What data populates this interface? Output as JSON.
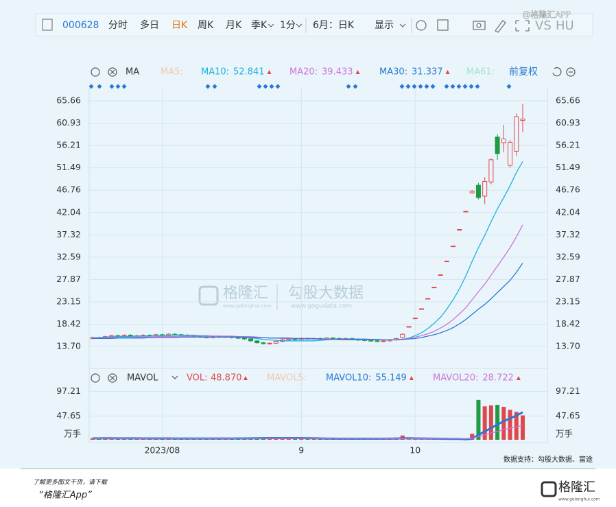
{
  "watermark": "@格隆汇APP",
  "toolbar": {
    "code": "000628",
    "tabs": [
      "分时",
      "多日",
      "日K",
      "周K",
      "月K",
      "季K",
      "1分",
      "6月：日K",
      "显示"
    ],
    "compare": "VS",
    "extra": "HU"
  },
  "chart_data": [
    {
      "type": "candlestick",
      "indicator": "MA",
      "ma5_label": "MA5:",
      "ma61_label": "MA61:",
      "adjust": "前复权",
      "categories": [
        null,
        null,
        null,
        null,
        null,
        null,
        null,
        null,
        null,
        null,
        null,
        "2023/08",
        null,
        null,
        null,
        null,
        null,
        null,
        null,
        null,
        null,
        null,
        null,
        null,
        null,
        null,
        null,
        null,
        null,
        null,
        null,
        null,
        null,
        "9",
        null,
        null,
        null,
        null,
        null,
        null,
        null,
        null,
        null,
        null,
        null,
        null,
        null,
        null,
        null,
        null,
        null,
        "10",
        null,
        null,
        null,
        null,
        null,
        null,
        null,
        null,
        null,
        null,
        null,
        null,
        null,
        null,
        null,
        null,
        null
      ],
      "open": [
        15.4,
        15.6,
        15.5,
        15.8,
        16.0,
        15.9,
        16.1,
        15.9,
        16.0,
        16.1,
        16.0,
        16.2,
        16.1,
        16.3,
        16.2,
        16.1,
        16.0,
        15.8,
        15.7,
        15.6,
        15.8,
        15.7,
        15.8,
        15.6,
        15.5,
        15.3,
        14.9,
        14.5,
        14.3,
        14.4,
        14.8,
        15.1,
        15.3,
        15.2,
        15.4,
        15.3,
        15.4,
        15.3,
        15.5,
        15.4,
        15.3,
        15.4,
        15.2,
        15.1,
        15.0,
        14.9,
        14.8,
        14.9,
        15.1,
        15.6,
        17.93,
        19.72,
        21.69,
        23.86,
        26.25,
        28.88,
        31.77,
        34.95,
        38.45,
        42.3,
        46.2,
        47.8,
        45.5,
        48.5,
        58.0,
        56.8,
        52.0,
        55.0,
        61.5
      ],
      "high": [
        15.8,
        15.8,
        16.0,
        16.2,
        16.2,
        16.3,
        16.3,
        16.2,
        16.3,
        16.3,
        16.4,
        16.4,
        16.5,
        16.5,
        16.4,
        16.3,
        16.2,
        16.0,
        15.9,
        16.0,
        16.0,
        16.0,
        16.0,
        15.8,
        15.7,
        15.5,
        15.1,
        14.7,
        14.6,
        15.0,
        15.3,
        15.5,
        15.5,
        15.6,
        15.6,
        15.6,
        15.6,
        15.7,
        15.7,
        15.6,
        15.6,
        15.6,
        15.4,
        15.3,
        15.2,
        15.1,
        15.1,
        15.3,
        15.6,
        16.5,
        17.93,
        19.72,
        21.69,
        23.86,
        26.25,
        28.88,
        31.77,
        34.95,
        38.45,
        42.3,
        46.8,
        48.3,
        49.5,
        53.5,
        58.6,
        60.6,
        57.4,
        63.0,
        65.0
      ],
      "low": [
        15.2,
        15.3,
        15.3,
        15.6,
        15.7,
        15.7,
        15.7,
        15.7,
        15.8,
        15.8,
        15.8,
        15.9,
        15.9,
        16.0,
        15.9,
        15.8,
        15.6,
        15.5,
        15.4,
        15.4,
        15.5,
        15.5,
        15.4,
        15.3,
        15.1,
        14.7,
        14.3,
        14.1,
        14.1,
        14.2,
        14.6,
        14.9,
        15.0,
        15.0,
        15.1,
        15.1,
        15.1,
        15.1,
        15.2,
        15.1,
        15.1,
        15.0,
        14.9,
        14.8,
        14.7,
        14.6,
        14.6,
        14.7,
        14.9,
        15.4,
        17.93,
        19.72,
        21.69,
        23.86,
        26.25,
        28.88,
        31.77,
        34.95,
        38.45,
        42.3,
        46.0,
        44.8,
        43.8,
        48.0,
        53.2,
        54.8,
        51.5,
        54.0,
        59.0
      ],
      "close": [
        15.6,
        15.5,
        15.8,
        16.0,
        15.9,
        16.1,
        15.9,
        16.0,
        16.1,
        16.0,
        16.2,
        16.1,
        16.3,
        16.2,
        16.1,
        16.0,
        15.8,
        15.7,
        15.6,
        15.8,
        15.7,
        15.8,
        15.6,
        15.5,
        15.3,
        14.9,
        14.5,
        14.3,
        14.4,
        14.8,
        15.1,
        15.3,
        15.2,
        15.4,
        15.3,
        15.4,
        15.3,
        15.5,
        15.4,
        15.3,
        15.4,
        15.2,
        15.1,
        15.0,
        14.9,
        14.8,
        14.9,
        15.1,
        15.4,
        16.3,
        17.93,
        19.72,
        21.69,
        23.86,
        26.25,
        28.88,
        31.77,
        34.95,
        38.45,
        42.3,
        46.53,
        45.2,
        48.6,
        53.2,
        54.5,
        57.6,
        56.9,
        62.3,
        61.8
      ],
      "up_color": "#e0474c",
      "down_color": "#1f9a45",
      "ylim": [
        9.36,
        68.41
      ],
      "yticks": [
        {
          "value": 13.7,
          "label": "13.70"
        },
        18.42,
        23.15,
        27.87,
        32.59,
        37.32,
        42.04,
        46.76,
        51.49,
        56.21,
        60.93,
        65.66
      ],
      "series": [
        {
          "name": "MA10:",
          "color": "#1fb0de",
          "values": [
            15.6,
            15.6,
            15.7,
            15.7,
            15.8,
            15.8,
            15.8,
            15.9,
            15.9,
            15.9,
            16.0,
            16.0,
            16.0,
            16.1,
            16.1,
            16.1,
            16.1,
            16.0,
            16.0,
            15.9,
            15.9,
            15.8,
            15.8,
            15.7,
            15.6,
            15.5,
            15.4,
            15.2,
            15.1,
            15.0,
            14.9,
            14.9,
            14.9,
            14.9,
            14.9,
            14.9,
            15.0,
            15.1,
            15.2,
            15.3,
            15.3,
            15.3,
            15.3,
            15.3,
            15.2,
            15.2,
            15.1,
            15.1,
            15.1,
            15.2,
            15.5,
            16.0,
            16.6,
            17.5,
            18.6,
            19.9,
            21.6,
            23.6,
            25.9,
            28.6,
            31.7,
            34.6,
            37.2,
            40.1,
            42.8,
            45.2,
            47.7,
            50.5,
            52.841
          ]
        },
        {
          "name": "MA20:",
          "color": "#cf73d6",
          "values": [
            15.5,
            15.5,
            15.5,
            15.6,
            15.6,
            15.6,
            15.6,
            15.7,
            15.7,
            15.7,
            15.8,
            15.8,
            15.8,
            15.8,
            15.9,
            15.9,
            15.9,
            15.9,
            15.9,
            15.9,
            15.9,
            15.9,
            15.9,
            15.8,
            15.8,
            15.8,
            15.7,
            15.6,
            15.5,
            15.5,
            15.4,
            15.4,
            15.4,
            15.3,
            15.3,
            15.3,
            15.2,
            15.2,
            15.2,
            15.1,
            15.1,
            15.1,
            15.1,
            15.1,
            15.1,
            15.1,
            15.1,
            15.1,
            15.1,
            15.2,
            15.4,
            15.7,
            16.0,
            16.4,
            16.9,
            17.6,
            18.4,
            19.4,
            20.6,
            21.9,
            23.6,
            25.3,
            26.9,
            28.8,
            30.7,
            32.6,
            34.6,
            36.9,
            39.433
          ]
        },
        {
          "name": "MA30:",
          "color": "#2a78d2",
          "values": [
            15.4,
            15.4,
            15.4,
            15.4,
            15.5,
            15.5,
            15.5,
            15.5,
            15.5,
            15.6,
            15.6,
            15.6,
            15.6,
            15.6,
            15.7,
            15.7,
            15.7,
            15.7,
            15.7,
            15.7,
            15.7,
            15.7,
            15.7,
            15.7,
            15.7,
            15.6,
            15.6,
            15.6,
            15.5,
            15.5,
            15.5,
            15.5,
            15.4,
            15.4,
            15.4,
            15.4,
            15.3,
            15.3,
            15.3,
            15.3,
            15.2,
            15.2,
            15.2,
            15.2,
            15.2,
            15.1,
            15.1,
            15.1,
            15.1,
            15.2,
            15.3,
            15.4,
            15.6,
            15.9,
            16.2,
            16.6,
            17.1,
            17.7,
            18.5,
            19.4,
            20.5,
            21.6,
            22.6,
            23.8,
            25.1,
            26.4,
            27.7,
            29.4,
            31.337
          ]
        }
      ]
    },
    {
      "type": "bar",
      "indicator": "MAVOL",
      "vol_label": "VOL:",
      "vol_reading": "48.870",
      "mavol5_label": "MAVOL5:",
      "unit": "万手",
      "values": [
        3.1,
        2.8,
        3.5,
        3.0,
        2.6,
        2.9,
        2.4,
        2.7,
        2.5,
        2.3,
        2.8,
        2.6,
        2.4,
        2.2,
        2.5,
        2.7,
        2.9,
        3.2,
        2.8,
        2.6,
        2.4,
        2.5,
        2.7,
        3.0,
        3.4,
        4.1,
        4.8,
        5.2,
        3.9,
        3.3,
        3.0,
        2.7,
        2.5,
        2.3,
        2.2,
        2.4,
        2.1,
        2.3,
        2.0,
        1.9,
        2.1,
        2.2,
        2.4,
        2.6,
        2.3,
        2.1,
        2.4,
        3.2,
        4.5,
        8.6,
        0.9,
        0.6,
        0.5,
        0.4,
        0.6,
        0.5,
        0.7,
        0.8,
        0.9,
        1.2,
        12.0,
        80.0,
        67.0,
        69.0,
        70.0,
        66.0,
        60.0,
        56.0,
        48.87
      ],
      "ylim": [
        0,
        108.7
      ],
      "yticks": [
        97.21,
        47.65
      ],
      "series": [
        {
          "name": "MAVOL10:",
          "color": "#2a78d2",
          "values": [
            2.9,
            2.9,
            3.0,
            3.0,
            2.9,
            2.9,
            2.9,
            2.9,
            2.8,
            2.8,
            2.8,
            2.8,
            2.7,
            2.6,
            2.6,
            2.6,
            2.6,
            2.6,
            2.6,
            2.6,
            2.6,
            2.6,
            2.6,
            2.7,
            2.8,
            2.9,
            3.1,
            3.3,
            3.4,
            3.5,
            3.5,
            3.5,
            3.5,
            3.4,
            3.3,
            3.1,
            2.8,
            2.5,
            2.3,
            2.2,
            2.2,
            2.2,
            2.2,
            2.2,
            2.2,
            2.2,
            2.2,
            2.3,
            2.5,
            3.1,
            3.0,
            2.8,
            2.6,
            2.4,
            2.2,
            2.0,
            1.9,
            1.7,
            1.6,
            1.1,
            2.0,
            9.9,
            16.6,
            23.5,
            30.5,
            37.0,
            43.0,
            48.5,
            55.149
          ]
        },
        {
          "name": "MAVOL20:",
          "color": "#cf73d6",
          "values": [
            2.8,
            2.8,
            2.8,
            2.8,
            2.8,
            2.8,
            2.8,
            2.8,
            2.8,
            2.8,
            2.8,
            2.8,
            2.8,
            2.8,
            2.8,
            2.8,
            2.7,
            2.7,
            2.7,
            2.7,
            2.7,
            2.7,
            2.7,
            2.7,
            2.7,
            2.8,
            2.9,
            3.0,
            3.0,
            3.1,
            3.1,
            3.1,
            3.1,
            3.1,
            3.1,
            3.1,
            3.0,
            2.9,
            2.9,
            2.8,
            2.8,
            2.8,
            2.7,
            2.7,
            2.6,
            2.6,
            2.5,
            2.5,
            2.4,
            2.7,
            2.6,
            2.5,
            2.4,
            2.3,
            2.2,
            2.1,
            2.0,
            2.0,
            2.0,
            2.1,
            2.6,
            6.5,
            9.8,
            13.3,
            16.7,
            20.0,
            23.0,
            25.9,
            28.722
          ]
        }
      ]
    }
  ],
  "chart_watermark": {
    "brand": "格隆汇",
    "brand_url": "www.gelonghui.com",
    "partner": "勾股大数据",
    "partner_url": "www.gogudata.com"
  },
  "source": "数据支持：勾股大数据、富途",
  "footer": {
    "promo": "了解更多图文干货，请下载",
    "app": "“格隆汇App”",
    "logo": "格隆汇",
    "logo_url": "www.gelonghui.com"
  }
}
